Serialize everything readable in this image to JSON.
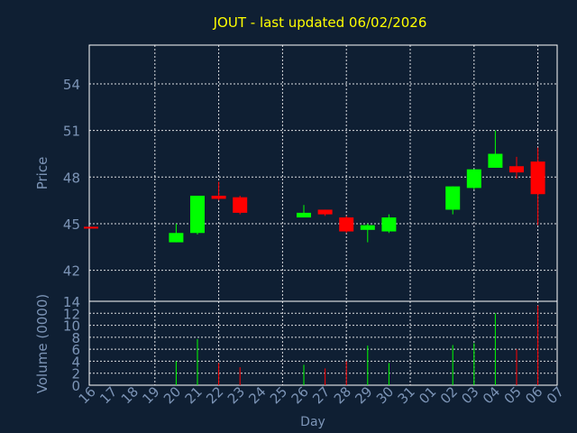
{
  "chart_data": [
    {
      "type": "candlestick",
      "title": "JOUT - last updated 06/02/2026",
      "ylabel": "Price",
      "ylim": [
        40,
        56.5
      ],
      "yticks": [
        42,
        45,
        48,
        51,
        54
      ],
      "grid": true,
      "up_color": "#00ff00",
      "down_color": "#ff0000",
      "categories": [
        "16",
        "17",
        "18",
        "19",
        "20",
        "21",
        "22",
        "23",
        "24",
        "25",
        "26",
        "27",
        "28",
        "29",
        "30",
        "31",
        "01",
        "02",
        "03",
        "04",
        "05",
        "06",
        "07"
      ],
      "candles": [
        {
          "day": "16",
          "open": 44.8,
          "high": 44.8,
          "low": 44.7,
          "close": 44.7
        },
        {
          "day": "20",
          "open": 43.8,
          "high": 45.0,
          "low": 43.8,
          "close": 44.4
        },
        {
          "day": "21",
          "open": 44.4,
          "high": 46.8,
          "low": 44.3,
          "close": 46.8
        },
        {
          "day": "22",
          "open": 46.8,
          "high": 47.7,
          "low": 46.5,
          "close": 46.6
        },
        {
          "day": "23",
          "open": 46.7,
          "high": 46.8,
          "low": 45.6,
          "close": 45.7
        },
        {
          "day": "26",
          "open": 45.4,
          "high": 46.2,
          "low": 45.4,
          "close": 45.7
        },
        {
          "day": "27",
          "open": 45.9,
          "high": 45.9,
          "low": 45.5,
          "close": 45.6
        },
        {
          "day": "28",
          "open": 45.4,
          "high": 45.5,
          "low": 44.4,
          "close": 44.5
        },
        {
          "day": "29",
          "open": 44.6,
          "high": 45.0,
          "low": 43.8,
          "close": 44.9
        },
        {
          "day": "30",
          "open": 44.5,
          "high": 45.6,
          "low": 44.4,
          "close": 45.4
        },
        {
          "day": "02",
          "open": 45.9,
          "high": 47.4,
          "low": 45.6,
          "close": 47.4
        },
        {
          "day": "03",
          "open": 47.3,
          "high": 48.5,
          "low": 47.2,
          "close": 48.5
        },
        {
          "day": "04",
          "open": 48.6,
          "high": 51.0,
          "low": 48.6,
          "close": 49.5
        },
        {
          "day": "05",
          "open": 48.7,
          "high": 49.3,
          "low": 47.9,
          "close": 48.3
        },
        {
          "day": "06",
          "open": 49.0,
          "high": 49.9,
          "low": 44.9,
          "close": 46.9
        }
      ]
    },
    {
      "type": "bar",
      "xlabel": "Day",
      "ylabel": "Volume (0000)",
      "ylim": [
        0,
        14
      ],
      "yticks": [
        0,
        2,
        4,
        6,
        8,
        10,
        12,
        14
      ],
      "grid": true,
      "bars": [
        {
          "day": "16",
          "value": 0,
          "color": "#ff0000"
        },
        {
          "day": "20",
          "value": 4,
          "color": "#00ff00"
        },
        {
          "day": "21",
          "value": 7.7,
          "color": "#00ff00"
        },
        {
          "day": "22",
          "value": 3.7,
          "color": "#ff0000"
        },
        {
          "day": "23",
          "value": 3.0,
          "color": "#ff0000"
        },
        {
          "day": "26",
          "value": 3.4,
          "color": "#00ff00"
        },
        {
          "day": "27",
          "value": 2.8,
          "color": "#ff0000"
        },
        {
          "day": "28",
          "value": 4.0,
          "color": "#ff0000"
        },
        {
          "day": "29",
          "value": 6.6,
          "color": "#00ff00"
        },
        {
          "day": "30",
          "value": 3.7,
          "color": "#00ff00"
        },
        {
          "day": "02",
          "value": 6.7,
          "color": "#00ff00"
        },
        {
          "day": "03",
          "value": 7.0,
          "color": "#00ff00"
        },
        {
          "day": "04",
          "value": 12.0,
          "color": "#00ff00"
        },
        {
          "day": "05",
          "value": 6.0,
          "color": "#ff0000"
        },
        {
          "day": "06",
          "value": 13.3,
          "color": "#ff0000"
        }
      ]
    }
  ]
}
